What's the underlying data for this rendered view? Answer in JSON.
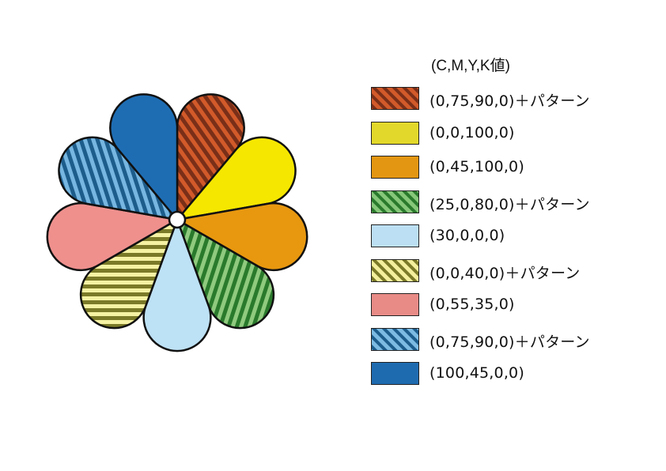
{
  "legend": {
    "title": "(C,M,Y,K値)",
    "items": [
      {
        "label": "(0,75,90,0)＋パターン",
        "color": "#d25a2a",
        "pattern": "diagonal",
        "stripe": "#7a2f18"
      },
      {
        "label": "(0,0,100,0)",
        "color": "#e2d82b",
        "pattern": "none"
      },
      {
        "label": "(0,45,100,0)",
        "color": "#e39612",
        "pattern": "none"
      },
      {
        "label": "(25,0,80,0)＋パターン",
        "color": "#86c77a",
        "pattern": "diagonal",
        "stripe": "#2a7a2c"
      },
      {
        "label": "(30,0,0,0)",
        "color": "#bcdff4",
        "pattern": "none"
      },
      {
        "label": "(0,0,40,0)＋パターン",
        "color": "#f3ef9c",
        "pattern": "diagonal",
        "stripe": "#7b7a28"
      },
      {
        "label": "(0,55,35,0)",
        "color": "#e88b87",
        "pattern": "none"
      },
      {
        "label": "(0,75,90,0)＋パターン",
        "color": "#7dbbe3",
        "pattern": "diagonal",
        "stripe": "#1d5d8c"
      },
      {
        "label": "(100,45,0,0)",
        "color": "#1f6bb0",
        "pattern": "none"
      }
    ]
  },
  "flower": {
    "petals": [
      {
        "name": "petal-orange-red-striped",
        "color": "#d25a2a",
        "pattern": "diagonal",
        "stripe": "#7a2f18"
      },
      {
        "name": "petal-yellow",
        "color": "#f6e700",
        "pattern": "none"
      },
      {
        "name": "petal-orange",
        "color": "#e8980f",
        "pattern": "none"
      },
      {
        "name": "petal-green-striped",
        "color": "#8fca7e",
        "pattern": "diagonal-steep",
        "stripe": "#2a7a2c"
      },
      {
        "name": "petal-light-blue",
        "color": "#bde1f5",
        "pattern": "none"
      },
      {
        "name": "petal-light-yellow-striped",
        "color": "#f6f2a4",
        "pattern": "horizontal",
        "stripe": "#7b7a28"
      },
      {
        "name": "petal-pink",
        "color": "#ef908d",
        "pattern": "none"
      },
      {
        "name": "petal-blue-striped",
        "color": "#76b6e0",
        "pattern": "diagonal-steep-rev",
        "stripe": "#1d5d8c"
      },
      {
        "name": "petal-dark-blue",
        "color": "#1e6db3",
        "pattern": "none"
      }
    ]
  }
}
